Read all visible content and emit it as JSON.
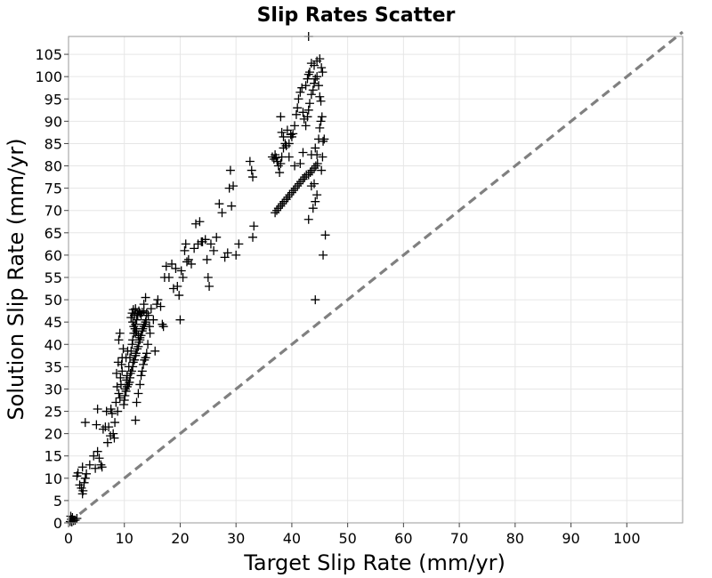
{
  "chart_data": {
    "type": "scatter",
    "title": "Slip Rates Scatter",
    "xlabel": "Target Slip Rate (mm/yr)",
    "ylabel": "Solution Slip Rate (mm/yr)",
    "xlim": [
      0,
      110
    ],
    "ylim": [
      0,
      109
    ],
    "xticks": [
      0,
      10,
      20,
      30,
      40,
      50,
      60,
      70,
      80,
      90,
      100
    ],
    "yticks": [
      0,
      5,
      10,
      15,
      20,
      25,
      30,
      35,
      40,
      45,
      50,
      55,
      60,
      65,
      70,
      75,
      80,
      85,
      90,
      95,
      100,
      105
    ],
    "grid": true,
    "marker": "plus",
    "marker_color": "#000000",
    "reference_line": {
      "style": "dashed",
      "color": "#808080",
      "from": [
        0,
        0
      ],
      "to": [
        110,
        110
      ]
    },
    "points": [
      [
        0.3,
        0.3
      ],
      [
        0.5,
        0.8
      ],
      [
        0.7,
        1.2
      ],
      [
        0.9,
        0.5
      ],
      [
        0.4,
        1.5
      ],
      [
        1.2,
        0.6
      ],
      [
        0.6,
        0.2
      ],
      [
        1.5,
        1.0
      ],
      [
        1.5,
        10.5
      ],
      [
        1.7,
        11.2
      ],
      [
        2.0,
        8.5
      ],
      [
        2.3,
        7.8
      ],
      [
        2.5,
        6.5
      ],
      [
        2.6,
        7.2
      ],
      [
        2.8,
        9.0
      ],
      [
        2.5,
        12.5
      ],
      [
        3.0,
        10.0
      ],
      [
        3.2,
        11.0
      ],
      [
        3.0,
        22.5
      ],
      [
        3.8,
        13.0
      ],
      [
        4.5,
        15.0
      ],
      [
        4.8,
        12.2
      ],
      [
        5.2,
        16.0
      ],
      [
        5.5,
        14.5
      ],
      [
        5.8,
        13.0
      ],
      [
        6.0,
        12.5
      ],
      [
        5.0,
        22.0
      ],
      [
        5.2,
        25.5
      ],
      [
        6.2,
        21.0
      ],
      [
        6.6,
        21.5
      ],
      [
        6.8,
        25.0
      ],
      [
        7.0,
        18.0
      ],
      [
        7.2,
        21.5
      ],
      [
        7.5,
        19.5
      ],
      [
        7.6,
        25.5
      ],
      [
        7.8,
        24.5
      ],
      [
        8.0,
        20.0
      ],
      [
        8.2,
        19.0
      ],
      [
        8.3,
        22.5
      ],
      [
        8.5,
        27.0
      ],
      [
        8.7,
        30.5
      ],
      [
        8.8,
        25.0
      ],
      [
        9.0,
        29.0
      ],
      [
        9.2,
        28.0
      ],
      [
        9.3,
        32.5
      ],
      [
        9.4,
        31.0
      ],
      [
        9.5,
        35.5
      ],
      [
        9.6,
        34.0
      ],
      [
        9.6,
        37.0
      ],
      [
        9.8,
        39.0
      ],
      [
        8.6,
        33.5
      ],
      [
        8.9,
        36.0
      ],
      [
        9.0,
        41.0
      ],
      [
        9.2,
        42.5
      ],
      [
        9.9,
        26.5
      ],
      [
        10.0,
        27.5
      ],
      [
        10.1,
        28.5
      ],
      [
        10.3,
        29.5
      ],
      [
        10.5,
        30.5
      ],
      [
        10.7,
        31.0
      ],
      [
        10.9,
        31.5
      ],
      [
        11.0,
        32.5
      ],
      [
        11.1,
        33.5
      ],
      [
        11.3,
        34.0
      ],
      [
        11.5,
        35.0
      ],
      [
        11.6,
        36.0
      ],
      [
        11.8,
        36.5
      ],
      [
        12.0,
        37.5
      ],
      [
        12.1,
        38.0
      ],
      [
        12.3,
        39.0
      ],
      [
        12.5,
        39.5
      ],
      [
        12.6,
        40.5
      ],
      [
        12.8,
        41.0
      ],
      [
        13.0,
        42.0
      ],
      [
        13.2,
        43.0
      ],
      [
        13.3,
        43.5
      ],
      [
        13.5,
        44.0
      ],
      [
        13.6,
        44.5
      ],
      [
        13.8,
        45.0
      ],
      [
        13.9,
        45.5
      ],
      [
        10.5,
        33.0
      ],
      [
        10.8,
        35.0
      ],
      [
        11.0,
        37.0
      ],
      [
        11.2,
        38.5
      ],
      [
        11.4,
        40.0
      ],
      [
        11.5,
        41.0
      ],
      [
        11.7,
        42.5
      ],
      [
        11.9,
        43.5
      ],
      [
        12.0,
        44.5
      ],
      [
        12.2,
        45.5
      ],
      [
        12.4,
        46.5
      ],
      [
        12.6,
        47.5
      ],
      [
        11.2,
        46.0
      ],
      [
        11.4,
        47.0
      ],
      [
        11.6,
        47.8
      ],
      [
        11.8,
        46.5
      ],
      [
        12.0,
        48.0
      ],
      [
        12.3,
        46.8
      ],
      [
        12.8,
        47.0
      ],
      [
        13.0,
        46.5
      ],
      [
        13.2,
        47.2
      ],
      [
        13.5,
        47.5
      ],
      [
        11.5,
        45.0
      ],
      [
        11.7,
        44.0
      ],
      [
        12.0,
        42.5
      ],
      [
        12.2,
        43.0
      ],
      [
        12.5,
        42.0
      ],
      [
        12.8,
        41.5
      ],
      [
        10.3,
        37.0
      ],
      [
        10.6,
        38.5
      ],
      [
        10.2,
        30.0
      ],
      [
        10.4,
        32.0
      ],
      [
        12.2,
        27.0
      ],
      [
        12.5,
        29.0
      ],
      [
        12.0,
        23.0
      ],
      [
        12.8,
        31.0
      ],
      [
        13.0,
        33.0
      ],
      [
        13.2,
        34.0
      ],
      [
        13.4,
        35.5
      ],
      [
        13.6,
        36.5
      ],
      [
        13.8,
        37.0
      ],
      [
        14.0,
        38.0
      ],
      [
        13.5,
        49.0
      ],
      [
        13.8,
        50.5
      ],
      [
        14.0,
        47.0
      ],
      [
        14.3,
        46.5
      ],
      [
        14.5,
        44.0
      ],
      [
        14.8,
        48.0
      ],
      [
        15.2,
        45.5
      ],
      [
        15.5,
        38.5
      ],
      [
        14.6,
        42.5
      ],
      [
        14.2,
        40.0
      ],
      [
        15.8,
        49.0
      ],
      [
        16.0,
        50.0
      ],
      [
        16.5,
        48.5
      ],
      [
        16.8,
        44.5
      ],
      [
        17.0,
        44.0
      ],
      [
        17.2,
        55.0
      ],
      [
        17.5,
        57.5
      ],
      [
        18.0,
        55.0
      ],
      [
        18.5,
        58.0
      ],
      [
        18.8,
        52.5
      ],
      [
        19.2,
        57.0
      ],
      [
        19.5,
        53.0
      ],
      [
        19.8,
        51.0
      ],
      [
        20.0,
        45.5
      ],
      [
        20.2,
        56.5
      ],
      [
        20.5,
        55.0
      ],
      [
        20.8,
        61.0
      ],
      [
        21.0,
        62.5
      ],
      [
        21.2,
        58.5
      ],
      [
        21.5,
        59.0
      ],
      [
        22.0,
        58.0
      ],
      [
        22.5,
        61.5
      ],
      [
        22.8,
        67.0
      ],
      [
        23.2,
        62.5
      ],
      [
        23.5,
        67.5
      ],
      [
        23.8,
        63.0
      ],
      [
        24.0,
        63.0
      ],
      [
        24.5,
        63.5
      ],
      [
        24.8,
        59.0
      ],
      [
        25.0,
        55.0
      ],
      [
        25.2,
        53.0
      ],
      [
        25.5,
        62.5
      ],
      [
        26.0,
        61.0
      ],
      [
        26.5,
        64.0
      ],
      [
        27.0,
        71.5
      ],
      [
        27.5,
        69.5
      ],
      [
        28.0,
        59.5
      ],
      [
        28.5,
        60.5
      ],
      [
        28.8,
        75.0
      ],
      [
        29.0,
        79.0
      ],
      [
        29.2,
        71.0
      ],
      [
        29.5,
        75.5
      ],
      [
        30.0,
        60.0
      ],
      [
        30.5,
        62.5
      ],
      [
        32.5,
        81.0
      ],
      [
        32.8,
        79.0
      ],
      [
        33.0,
        77.5
      ],
      [
        33.2,
        66.5
      ],
      [
        33.0,
        64.0
      ],
      [
        36.5,
        82.0
      ],
      [
        36.8,
        81.5
      ],
      [
        37.0,
        82.5
      ],
      [
        37.2,
        81.8
      ],
      [
        37.4,
        81.0
      ],
      [
        37.6,
        80.0
      ],
      [
        37.8,
        78.5
      ],
      [
        38.0,
        80.5
      ],
      [
        38.2,
        82.0
      ],
      [
        37.0,
        69.5
      ],
      [
        37.3,
        70.0
      ],
      [
        37.6,
        70.5
      ],
      [
        38.0,
        71.0
      ],
      [
        38.3,
        71.5
      ],
      [
        38.6,
        72.0
      ],
      [
        39.0,
        72.5
      ],
      [
        39.3,
        73.0
      ],
      [
        39.6,
        73.5
      ],
      [
        40.0,
        74.0
      ],
      [
        40.3,
        74.5
      ],
      [
        40.6,
        75.0
      ],
      [
        41.0,
        75.5
      ],
      [
        41.3,
        76.0
      ],
      [
        41.6,
        76.5
      ],
      [
        42.0,
        77.0
      ],
      [
        42.3,
        77.5
      ],
      [
        42.6,
        78.0
      ],
      [
        43.0,
        78.0
      ],
      [
        43.3,
        78.5
      ],
      [
        43.6,
        79.0
      ],
      [
        44.0,
        79.5
      ],
      [
        44.3,
        80.0
      ],
      [
        44.6,
        80.5
      ],
      [
        44.0,
        76.0
      ],
      [
        43.5,
        75.5
      ],
      [
        43.0,
        68.0
      ],
      [
        43.8,
        70.5
      ],
      [
        44.2,
        72.0
      ],
      [
        44.5,
        73.5
      ],
      [
        38.0,
        91.0
      ],
      [
        38.2,
        87.5
      ],
      [
        38.5,
        86.5
      ],
      [
        38.8,
        85.0
      ],
      [
        39.0,
        84.5
      ],
      [
        39.2,
        88.0
      ],
      [
        39.5,
        85.0
      ],
      [
        39.8,
        87.0
      ],
      [
        40.0,
        86.5
      ],
      [
        40.2,
        87.2
      ],
      [
        40.5,
        89.0
      ],
      [
        40.8,
        91.5
      ],
      [
        41.0,
        93.0
      ],
      [
        41.2,
        95.0
      ],
      [
        41.5,
        96.5
      ],
      [
        41.8,
        97.5
      ],
      [
        42.0,
        92.0
      ],
      [
        42.2,
        90.5
      ],
      [
        42.5,
        89.0
      ],
      [
        42.8,
        91.0
      ],
      [
        43.0,
        92.5
      ],
      [
        43.2,
        94.0
      ],
      [
        43.5,
        96.0
      ],
      [
        43.8,
        97.0
      ],
      [
        44.0,
        98.5
      ],
      [
        44.2,
        99.5
      ],
      [
        44.5,
        100.0
      ],
      [
        44.8,
        98.0
      ],
      [
        45.0,
        95.5
      ],
      [
        45.2,
        94.5
      ],
      [
        42.5,
        98.0
      ],
      [
        42.8,
        99.5
      ],
      [
        43.0,
        100.5
      ],
      [
        43.2,
        101.0
      ],
      [
        43.5,
        103.0
      ],
      [
        44.0,
        102.5
      ],
      [
        44.5,
        103.5
      ],
      [
        45.0,
        104.0
      ],
      [
        45.3,
        102.0
      ],
      [
        45.5,
        101.0
      ],
      [
        44.2,
        84.0
      ],
      [
        44.5,
        82.5
      ],
      [
        44.8,
        86.0
      ],
      [
        45.0,
        88.5
      ],
      [
        45.2,
        90.0
      ],
      [
        45.4,
        91.0
      ],
      [
        45.6,
        85.5
      ],
      [
        45.8,
        86.0
      ],
      [
        45.5,
        82.0
      ],
      [
        45.3,
        79.0
      ],
      [
        46.0,
        64.5
      ],
      [
        45.6,
        60.0
      ],
      [
        44.2,
        50.0
      ],
      [
        43.5,
        82.5
      ],
      [
        42.0,
        83.0
      ],
      [
        41.5,
        80.5
      ],
      [
        40.5,
        80.0
      ],
      [
        39.5,
        82.0
      ],
      [
        38.5,
        84.0
      ],
      [
        43.0,
        109.0
      ]
    ]
  }
}
